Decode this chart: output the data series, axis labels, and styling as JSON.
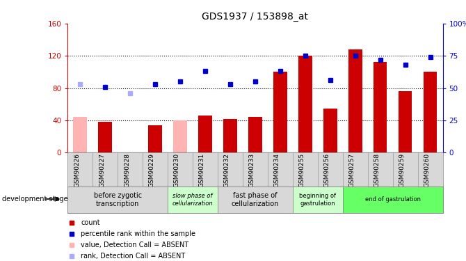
{
  "title": "GDS1937 / 153898_at",
  "categories": [
    "GSM90226",
    "GSM90227",
    "GSM90228",
    "GSM90229",
    "GSM90230",
    "GSM90231",
    "GSM90232",
    "GSM90233",
    "GSM90234",
    "GSM90255",
    "GSM90256",
    "GSM90257",
    "GSM90258",
    "GSM90259",
    "GSM90260"
  ],
  "bar_values": [
    44,
    38,
    null,
    34,
    40,
    46,
    42,
    44,
    100,
    120,
    55,
    128,
    112,
    76,
    100
  ],
  "absent_bar": [
    true,
    false,
    true,
    false,
    true,
    false,
    false,
    false,
    false,
    false,
    false,
    false,
    false,
    false,
    false
  ],
  "rank_values": [
    53,
    51,
    46,
    53,
    55,
    63,
    53,
    55,
    63,
    75,
    56,
    75,
    72,
    68,
    74
  ],
  "rank_absent": [
    true,
    false,
    true,
    false,
    false,
    false,
    false,
    false,
    false,
    false,
    false,
    false,
    false,
    false,
    false
  ],
  "ylim_left": [
    0,
    160
  ],
  "ylim_right": [
    0,
    100
  ],
  "yticks_left": [
    0,
    40,
    80,
    120,
    160
  ],
  "ytick_labels_right": [
    "0",
    "25",
    "50",
    "75",
    "100%"
  ],
  "stage_groups": [
    {
      "label": "before zygotic\ntranscription",
      "indices": [
        0,
        1,
        2,
        3
      ],
      "color": "#d8d8d8",
      "font_style": "normal"
    },
    {
      "label": "slow phase of\ncellularization",
      "indices": [
        4,
        5
      ],
      "color": "#ccffcc",
      "font_style": "italic"
    },
    {
      "label": "fast phase of\ncellularization",
      "indices": [
        6,
        7,
        8
      ],
      "color": "#d8d8d8",
      "font_style": "normal"
    },
    {
      "label": "beginning of\ngastrulation",
      "indices": [
        9,
        10
      ],
      "color": "#ccffcc",
      "font_style": "normal"
    },
    {
      "label": "end of gastrulation",
      "indices": [
        11,
        12,
        13,
        14
      ],
      "color": "#66ff66",
      "font_style": "normal"
    }
  ],
  "development_stage_label": "development stage",
  "rank_color_present": "#0000cc",
  "rank_color_absent": "#aaaaff",
  "bar_color_present": "#cc0000",
  "bar_color_absent": "#ffb3b3",
  "dotted_gridlines": [
    40,
    80,
    120
  ],
  "left_axis_color": "#cc0000",
  "right_axis_color": "#0000cc"
}
